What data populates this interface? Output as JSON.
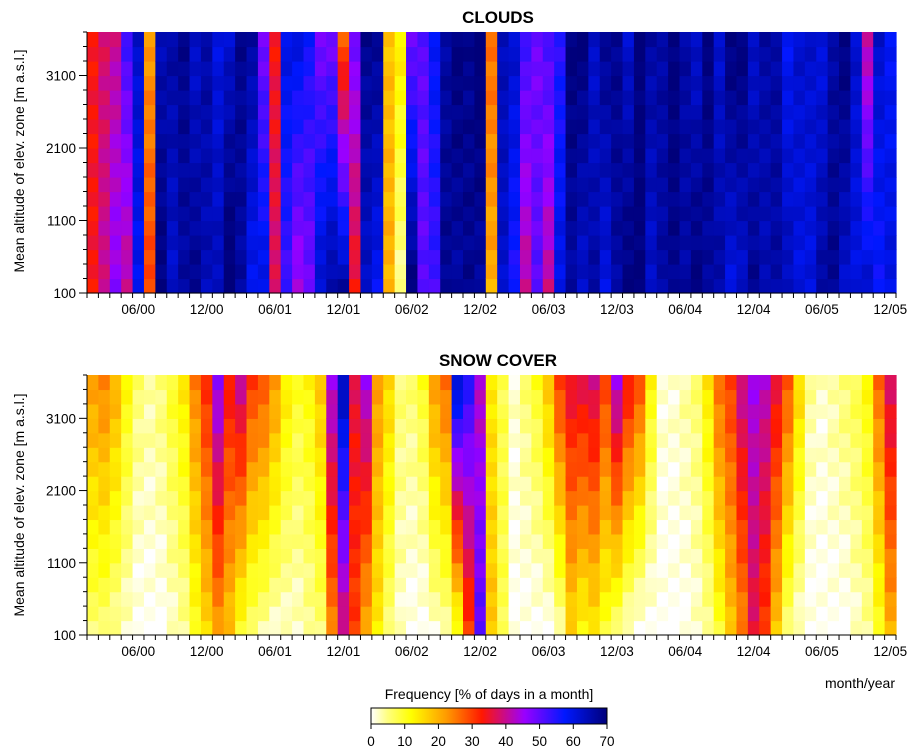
{
  "chart_data": [
    {
      "type": "heatmap",
      "title": "CLOUDS",
      "ylabel": "Mean altitude of elev. zone [m a.s.l.]",
      "xlabel": "",
      "yticks": [
        "100",
        "1100",
        "2100",
        "3100"
      ],
      "xticks": [
        "06/00",
        "12/00",
        "06/01",
        "12/01",
        "06/02",
        "12/02",
        "06/03",
        "12/03",
        "06/04",
        "12/04",
        "06/05",
        "12/05"
      ],
      "months": [
        "02/00",
        "03/00",
        "04/00",
        "05/00",
        "06/00",
        "07/00",
        "08/00",
        "09/00",
        "10/00",
        "11/00",
        "12/00",
        "01/01",
        "02/01",
        "03/01",
        "04/01",
        "05/01",
        "06/01",
        "07/01",
        "08/01",
        "09/01",
        "10/01",
        "11/01",
        "12/01",
        "01/02",
        "02/02",
        "03/02",
        "04/02",
        "05/02",
        "06/02",
        "07/02",
        "08/02",
        "09/02",
        "10/02",
        "11/02",
        "12/02",
        "01/03",
        "02/03",
        "03/03",
        "04/03",
        "05/03",
        "06/03",
        "07/03",
        "08/03",
        "09/03",
        "10/03",
        "11/03",
        "12/03",
        "01/04",
        "02/04",
        "03/04",
        "04/04",
        "05/04",
        "06/04",
        "07/04",
        "08/04",
        "09/04",
        "10/04",
        "11/04",
        "12/04",
        "01/05",
        "02/05",
        "03/05",
        "04/05",
        "05/05",
        "06/05",
        "07/05",
        "08/05",
        "09/05",
        "10/05",
        "11/05",
        "12/05"
      ],
      "zones": 18,
      "ylim": [
        100,
        3700
      ],
      "bottom_values": [
        34,
        40,
        46,
        40,
        58,
        30,
        70,
        62,
        66,
        68,
        64,
        64,
        72,
        66,
        58,
        60,
        38,
        52,
        44,
        48,
        62,
        66,
        66,
        34,
        62,
        58,
        20,
        4,
        70,
        50,
        52,
        68,
        66,
        68,
        66,
        20,
        62,
        55,
        40,
        50,
        40,
        60,
        66,
        62,
        66,
        60,
        66,
        70,
        70,
        62,
        66,
        68,
        66,
        70,
        66,
        66,
        60,
        62,
        68,
        64,
        66,
        64,
        60,
        60,
        66,
        68,
        62,
        60,
        62,
        56,
        60
      ],
      "top_values": [
        34,
        38,
        40,
        52,
        62,
        22,
        64,
        66,
        68,
        62,
        66,
        60,
        62,
        68,
        66,
        48,
        34,
        60,
        60,
        56,
        48,
        48,
        28,
        48,
        68,
        68,
        18,
        14,
        48,
        50,
        58,
        66,
        70,
        68,
        72,
        26,
        64,
        62,
        52,
        48,
        52,
        54,
        70,
        70,
        62,
        68,
        68,
        62,
        70,
        66,
        66,
        70,
        66,
        62,
        70,
        62,
        70,
        70,
        62,
        66,
        66,
        58,
        62,
        62,
        60,
        66,
        70,
        62,
        40,
        62,
        58
      ],
      "colorbar": {
        "label": "Frequency [% of days in a month]",
        "min": 0,
        "max": 70,
        "ticks": [
          "0",
          "10",
          "20",
          "30",
          "40",
          "50",
          "60",
          "70"
        ]
      }
    },
    {
      "type": "heatmap",
      "title": "SNOW COVER",
      "ylabel": "Mean altitude of elev. zone [m a.s.l.]",
      "xlabel": "month/year",
      "yticks": [
        "100",
        "1100",
        "2100",
        "3100"
      ],
      "xticks": [
        "06/00",
        "12/00",
        "06/01",
        "12/01",
        "06/02",
        "12/02",
        "06/03",
        "12/03",
        "06/04",
        "12/04",
        "06/05",
        "12/05"
      ],
      "zones": 18,
      "ylim": [
        100,
        3700
      ],
      "top_values": [
        22,
        24,
        20,
        12,
        6,
        4,
        6,
        10,
        14,
        24,
        32,
        46,
        34,
        40,
        30,
        28,
        22,
        14,
        10,
        12,
        18,
        44,
        64,
        36,
        44,
        22,
        16,
        6,
        6,
        10,
        22,
        26,
        62,
        54,
        42,
        14,
        8,
        2,
        6,
        10,
        18,
        30,
        36,
        36,
        38,
        30,
        44,
        34,
        28,
        12,
        2,
        2,
        4,
        6,
        14,
        26,
        30,
        40,
        44,
        42,
        36,
        28,
        16,
        4,
        2,
        4,
        6,
        8,
        12,
        26,
        38
      ],
      "bottom_values": [
        6,
        6,
        4,
        2,
        0,
        0,
        0,
        2,
        4,
        10,
        16,
        22,
        18,
        10,
        6,
        4,
        2,
        2,
        2,
        4,
        6,
        24,
        38,
        30,
        20,
        14,
        6,
        2,
        0,
        0,
        2,
        4,
        10,
        30,
        50,
        18,
        8,
        0,
        0,
        0,
        0,
        4,
        16,
        12,
        14,
        10,
        6,
        2,
        0,
        0,
        0,
        0,
        0,
        2,
        4,
        10,
        18,
        24,
        36,
        30,
        18,
        6,
        2,
        0,
        0,
        0,
        0,
        2,
        4,
        10,
        20
      ],
      "colorbar": {
        "label": "Frequency [% of days in a month]",
        "min": 0,
        "max": 70,
        "ticks": [
          "0",
          "10",
          "20",
          "30",
          "40",
          "50",
          "60",
          "70"
        ]
      }
    }
  ]
}
